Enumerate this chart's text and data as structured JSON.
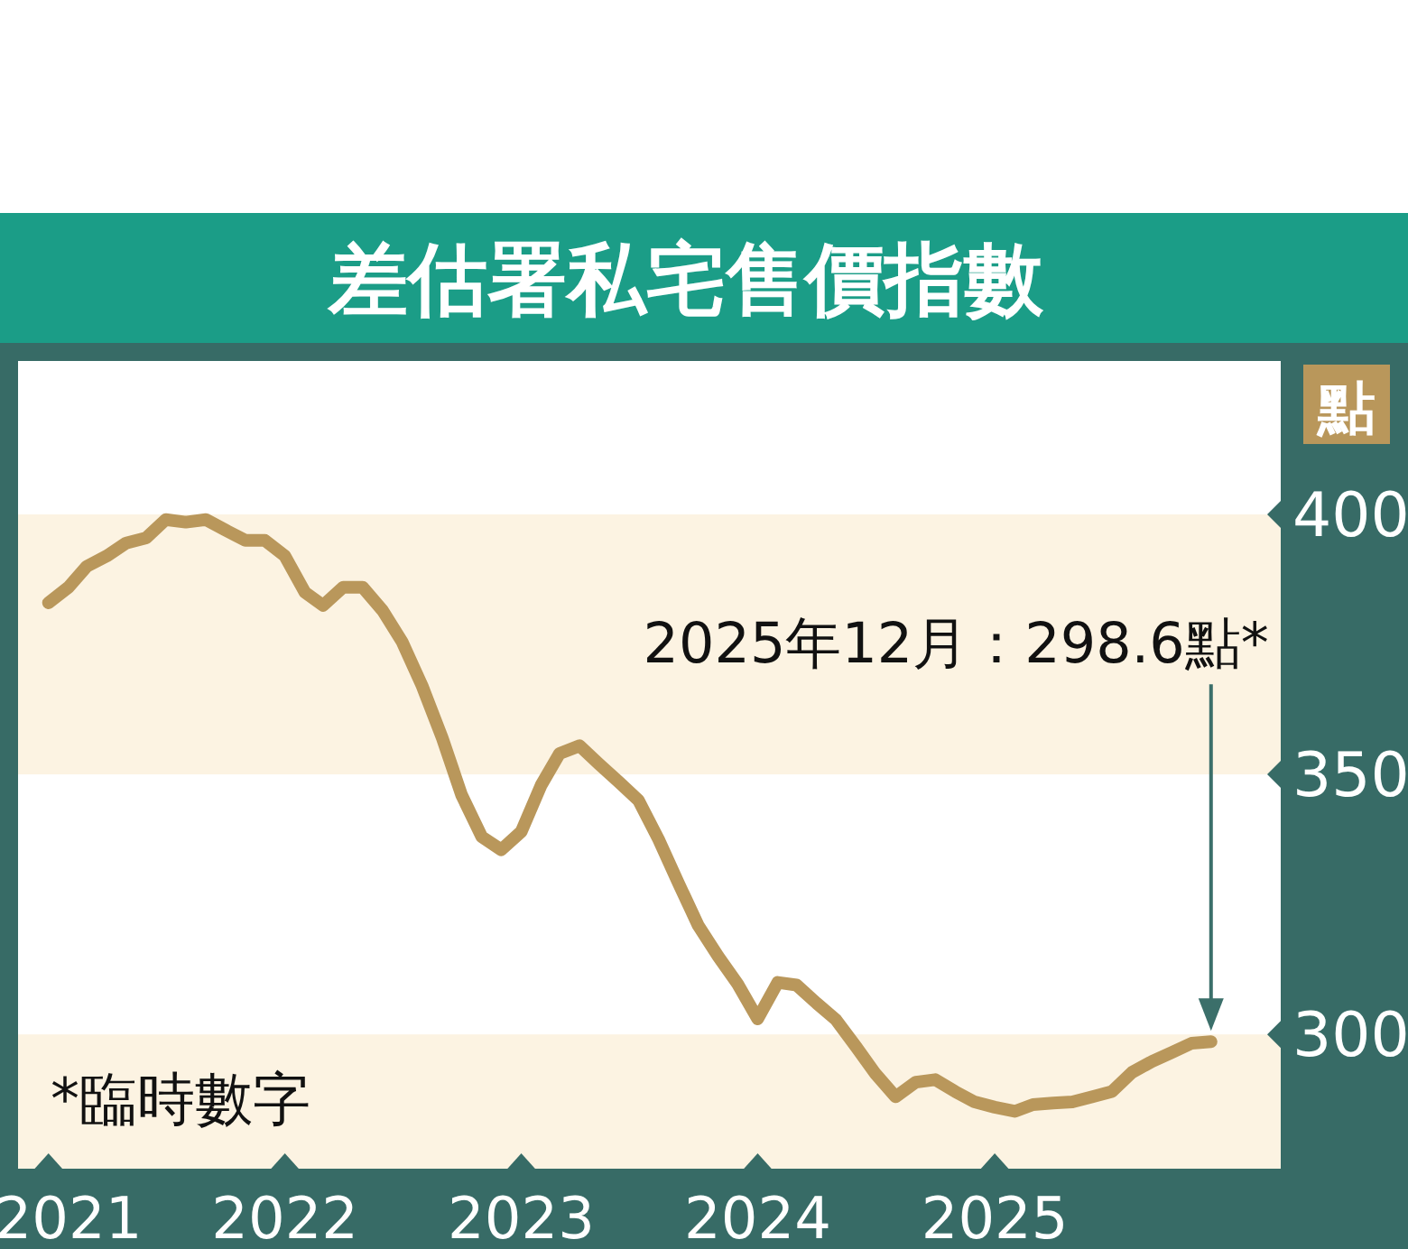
{
  "chart_data": {
    "type": "line",
    "title": "差估署私宅售價指數",
    "ylabel": "點",
    "x": [
      "2021-01",
      "2021-02",
      "2021-03",
      "2021-04",
      "2021-05",
      "2021-06",
      "2021-07",
      "2021-08",
      "2021-09",
      "2021-10",
      "2021-11",
      "2021-12",
      "2022-01",
      "2022-02",
      "2022-03",
      "2022-04",
      "2022-05",
      "2022-06",
      "2022-07",
      "2022-08",
      "2022-09",
      "2022-10",
      "2022-11",
      "2022-12",
      "2023-01",
      "2023-02",
      "2023-03",
      "2023-04",
      "2023-05",
      "2023-06",
      "2023-07",
      "2023-08",
      "2023-09",
      "2023-10",
      "2023-11",
      "2023-12",
      "2024-01",
      "2024-02",
      "2024-03",
      "2024-04",
      "2024-05",
      "2024-06",
      "2024-07",
      "2024-08",
      "2024-09",
      "2024-10",
      "2024-11",
      "2024-12",
      "2025-01",
      "2025-02",
      "2025-03",
      "2025-04",
      "2025-05",
      "2025-06",
      "2025-07",
      "2025-08",
      "2025-09",
      "2025-10",
      "2025-11",
      "2025-12"
    ],
    "series": [
      {
        "color": "#b9975b",
        "values": [
          383,
          386,
          390,
          392,
          394.5,
          395.5,
          399,
          398.5,
          399,
          397,
          395,
          395,
          392,
          385,
          382.5,
          386,
          386,
          381.5,
          375.5,
          367,
          357,
          346,
          338,
          335.5,
          339,
          348,
          354,
          355.5,
          352,
          348.5,
          345,
          337.5,
          329,
          321,
          315,
          309.7,
          303,
          310,
          309.5,
          306,
          302.8,
          297.6,
          292.4,
          288,
          290.8,
          291.3,
          289,
          287,
          286,
          285.2,
          286.5,
          286.8,
          287,
          288,
          289,
          292.7,
          294.8,
          296.5,
          298.3,
          298.6
        ]
      }
    ],
    "xlim": [
      "2020-11-15",
      "2026-03-20"
    ],
    "ylim": [
      274,
      429.5
    ],
    "xticks": [
      "2021",
      "2022",
      "2023",
      "2024",
      "2025"
    ],
    "yticks": [
      300,
      350,
      400
    ],
    "bands": [
      {
        "axis": "y",
        "from": 350,
        "to": 400,
        "color": "#fcf3e2"
      },
      {
        "axis": "y",
        "from": 274,
        "to": 300,
        "color": "#fcf3e2"
      }
    ],
    "annotations": [
      "2025年12月：298.6點*",
      "*臨時數字"
    ],
    "grid": false,
    "marker": "none",
    "line_style": "solid"
  }
}
